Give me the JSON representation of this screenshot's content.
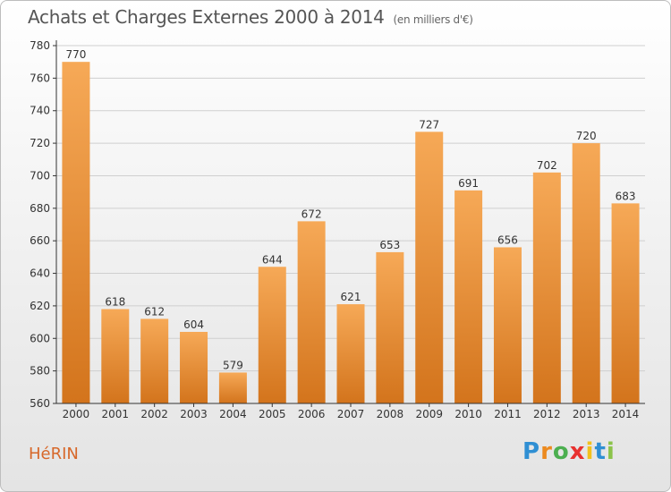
{
  "header": {
    "title": "Achats et Charges Externes 2000 à 2014",
    "unit": "(en milliers d'€)"
  },
  "footer": {
    "commune": "HéRIN",
    "brand_letters": [
      "P",
      "r",
      "o",
      "x",
      "i",
      "t",
      "i"
    ],
    "brand_colors": [
      "#2f8fd3",
      "#ec8a1f",
      "#4caf50",
      "#e8312f",
      "#f2c01c",
      "#2f8fd3",
      "#8bc34a"
    ]
  },
  "colors": {
    "bar_light": "#f6a957",
    "bar_dark": "#d3741c",
    "axis": "#333333",
    "grid": "#cfcfcf",
    "title": "#555555",
    "commune": "#d7682a"
  },
  "chart_data": {
    "type": "bar",
    "title": "Achats et Charges Externes 2000 à 2014",
    "subtitle": "(en milliers d'€)",
    "xlabel": "",
    "ylabel": "",
    "categories": [
      "2000",
      "2001",
      "2002",
      "2003",
      "2004",
      "2005",
      "2006",
      "2007",
      "2008",
      "2009",
      "2010",
      "2011",
      "2012",
      "2013",
      "2014"
    ],
    "values": [
      770,
      618,
      612,
      604,
      579,
      644,
      672,
      621,
      653,
      727,
      691,
      656,
      702,
      720,
      683
    ],
    "ylim": [
      560,
      780
    ],
    "yticks": [
      560,
      580,
      600,
      620,
      640,
      660,
      680,
      700,
      720,
      740,
      760,
      780
    ],
    "grid": true,
    "data_labels": true
  }
}
